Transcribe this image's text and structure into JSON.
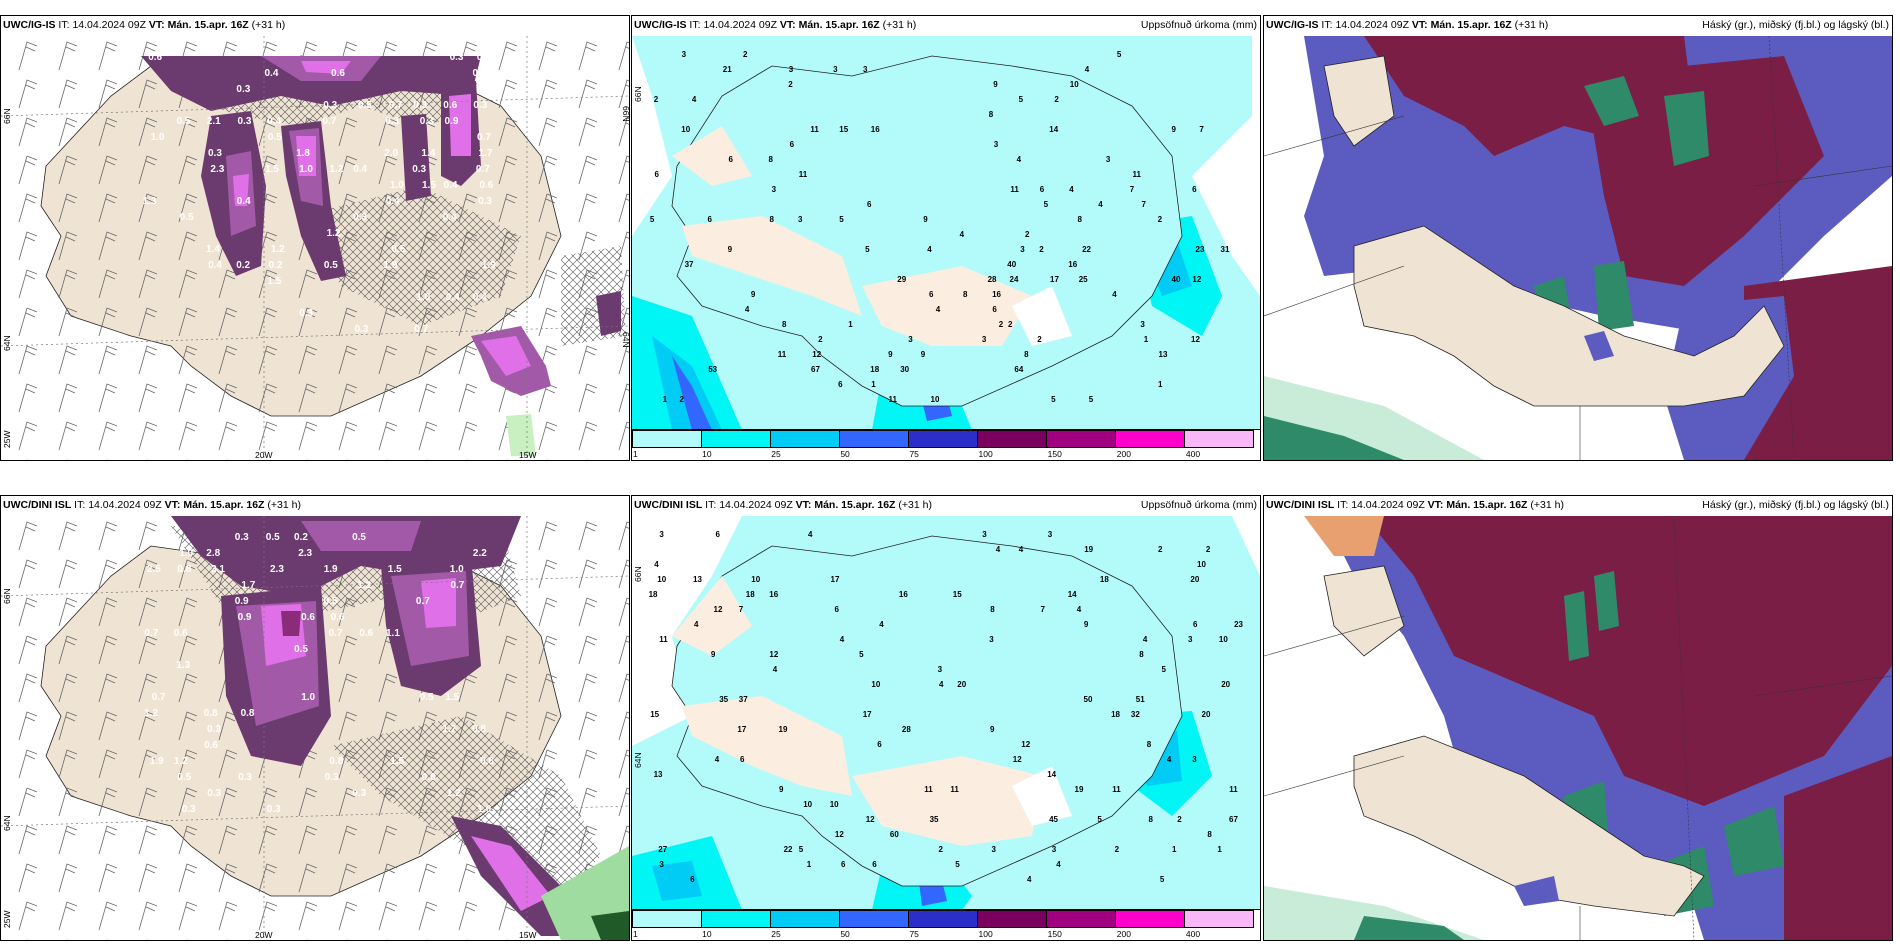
{
  "common": {
    "it_label": "IT:",
    "it_value": "14.04.2024 09Z",
    "vt_label": "VT:",
    "vt_value": "Mán. 15.apr. 16Z",
    "lead": "(+31 h)"
  },
  "rows": [
    {
      "model": "UWC/IG-IS"
    },
    {
      "model": "UWC/DINI ISL"
    }
  ],
  "panels": {
    "snow": {
      "axis_labels": {
        "lat_66": "66N",
        "lat_64": "64N",
        "lon_25": "25W",
        "lon_20": "20W",
        "lon_15": "15W"
      }
    },
    "precip": {
      "subtitle": "Uppsöfnuð úrkoma (mm)",
      "axis_labels": {
        "lat_66": "66N",
        "lat_64": "64N"
      }
    },
    "cloud": {
      "subtitle": "Háský (gr.), miðský (fj.bl.) og lágský (bl.)"
    }
  },
  "colorbar": {
    "ticks": [
      "1",
      "10",
      "25",
      "50",
      "75",
      "100",
      "150",
      "200",
      "400"
    ],
    "colors": [
      "#b3fafa",
      "#00f5f5",
      "#00ccf5",
      "#3366ff",
      "#2b2ec8",
      "#7a0060",
      "#a0007f",
      "#ff00cc",
      "#f8b8f8"
    ]
  },
  "colors": {
    "land": "#efe3d3",
    "sea_precip": "#b3fafa",
    "snow_dark": "#6b3a6e",
    "snow_mid": "#a25aa8",
    "snow_light": "#e070e8",
    "cloud_high": "#7b1e45",
    "cloud_mid": "#5b5bc0",
    "cloud_low": "#2f8a6a"
  },
  "precip_labels": {
    "top": [
      "3",
      "2",
      "5",
      "21",
      "3",
      "3",
      "3",
      "4",
      "2",
      "9",
      "10",
      "2",
      "4",
      "5",
      "2",
      "8",
      "10",
      "11",
      "15",
      "16",
      "14",
      "9",
      "7",
      "6",
      "3",
      "6",
      "8",
      "4",
      "3",
      "6",
      "11",
      "11",
      "3",
      "11",
      "6",
      "4",
      "7",
      "6",
      "6",
      "5",
      "4",
      "7",
      "5",
      "6",
      "8",
      "3",
      "5",
      "9",
      "8",
      "2",
      "4",
      "2",
      "9",
      "5",
      "4",
      "3",
      "2",
      "22",
      "23",
      "31",
      "37",
      "40",
      "16",
      "29",
      "28",
      "24",
      "17",
      "25",
      "40",
      "12",
      "9",
      "6",
      "8",
      "16",
      "4",
      "4",
      "4",
      "6",
      "8",
      "1",
      "2",
      "2",
      "3",
      "2",
      "3",
      "3",
      "2",
      "1",
      "12",
      "11",
      "12",
      "9",
      "9",
      "8",
      "13",
      "53",
      "67",
      "18",
      "30",
      "64",
      "6",
      "1",
      "1",
      "1",
      "2",
      "11",
      "10",
      "5",
      "5"
    ],
    "bottom": [
      "3",
      "6",
      "4",
      "3",
      "3",
      "4",
      "4",
      "19",
      "2",
      "2",
      "4",
      "10",
      "10",
      "13",
      "10",
      "17",
      "18",
      "20",
      "18",
      "18",
      "16",
      "16",
      "15",
      "14",
      "12",
      "7",
      "6",
      "8",
      "7",
      "4",
      "4",
      "4",
      "9",
      "6",
      "23",
      "11",
      "4",
      "3",
      "4",
      "3",
      "10",
      "9",
      "12",
      "5",
      "8",
      "4",
      "3",
      "5",
      "10",
      "4",
      "20",
      "20",
      "35",
      "37",
      "50",
      "51",
      "15",
      "17",
      "18",
      "32",
      "20",
      "17",
      "19",
      "28",
      "9",
      "6",
      "12",
      "8",
      "4",
      "6",
      "12",
      "4",
      "3",
      "13",
      "14",
      "9",
      "11",
      "11",
      "19",
      "11",
      "11",
      "10",
      "10",
      "12",
      "35",
      "45",
      "5",
      "8",
      "2",
      "67",
      "12",
      "60",
      "8",
      "27",
      "22",
      "5",
      "2",
      "3",
      "3",
      "2",
      "1",
      "1",
      "3",
      "1",
      "6",
      "6",
      "5",
      "4",
      "6",
      "4",
      "5"
    ]
  },
  "snow_labels": {
    "top": [
      "0.6",
      "0.3",
      "0.6",
      "0.4",
      "0.6",
      "0.4",
      "0.3",
      "0.4",
      "0.3",
      "0.5",
      "0.7",
      "0.3",
      "0.6",
      "0.3",
      "0.5",
      "2.1",
      "0.3",
      "0.4",
      "0.7",
      "0.3",
      "0.3",
      "0.9",
      "1.0",
      "0.5",
      "0.7",
      "0.3",
      "1.8",
      "2.0",
      "1.4",
      "1.7",
      "2.3",
      "1.5",
      "1.0",
      "1.2",
      "0.4",
      "0.3",
      "0.7",
      "1.0",
      "1.5",
      "0.4",
      "0.6",
      "1.3",
      "0.4",
      "0.4",
      "0.3",
      "0.5",
      "0.3",
      "0.4",
      "1.2",
      "1.4",
      "1.2",
      "0.5",
      "0.4",
      "0.2",
      "0.2",
      "0.5",
      "1.9",
      "1.9",
      "1.5",
      "1.0",
      "0.4",
      "0.4",
      "0.3",
      "0.3",
      "0.7"
    ],
    "bottom": [
      "0.3",
      "0.5",
      "0.2",
      "0.5",
      "1.0",
      "2.8",
      "2.3",
      "2.2",
      "2.5",
      "0.8",
      "3.1",
      "2.3",
      "1.9",
      "1.5",
      "1.0",
      "1.7",
      "1.2",
      "0.7",
      "0.9",
      "0.5",
      "0.7",
      "0.9",
      "0.6",
      "0.6",
      "0.7",
      "0.6",
      "0.7",
      "0.6",
      "1.1",
      "0.5",
      "1.3",
      "0.7",
      "1.0",
      "0.5",
      "1.5",
      "1.2",
      "0.8",
      "0.8",
      "0.3",
      "1.7",
      "0.8",
      "0.6",
      "1.9",
      "1.2",
      "0.8",
      "1.5",
      "0.8",
      "0.5",
      "0.3",
      "0.3",
      "0.8",
      "0.3",
      "0.3",
      "1.2",
      "0.3",
      "0.3",
      "1.0"
    ]
  }
}
